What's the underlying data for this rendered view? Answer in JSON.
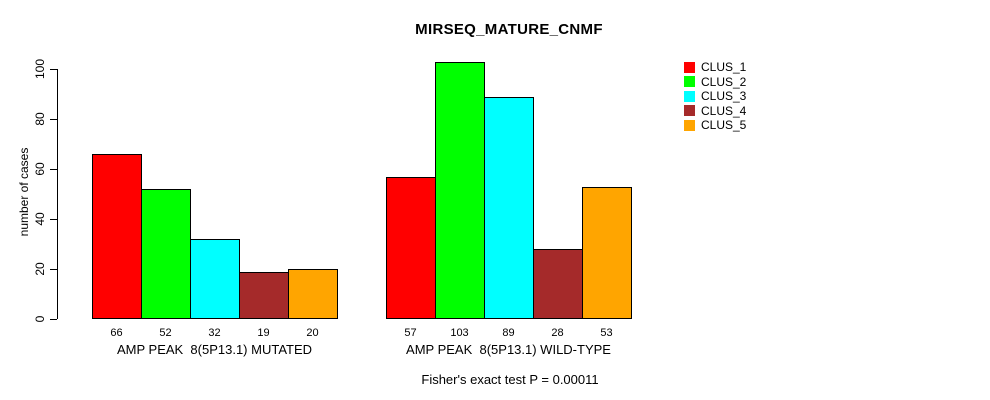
{
  "title": "MIRSEQ_MATURE_CNMF",
  "chart_data": {
    "type": "bar",
    "title": "MIRSEQ_MATURE_CNMF",
    "xlabel": "",
    "ylabel": "number of cases",
    "ylim": [
      0,
      103
    ],
    "y_ticks": [
      0,
      20,
      40,
      60,
      80,
      100
    ],
    "grid": false,
    "legend_position": "right",
    "categories": [
      "AMP PEAK  8(5P13.1) MUTATED",
      "AMP PEAK  8(5P13.1) WILD-TYPE"
    ],
    "series": [
      {
        "name": "CLUS_1",
        "color": "#FF0000",
        "values": [
          66,
          57
        ]
      },
      {
        "name": "CLUS_2",
        "color": "#00FF00",
        "values": [
          52,
          103
        ]
      },
      {
        "name": "CLUS_3",
        "color": "#00FFFF",
        "values": [
          32,
          89
        ]
      },
      {
        "name": "CLUS_4",
        "color": "#A52A2A",
        "values": [
          19,
          28
        ]
      },
      {
        "name": "CLUS_5",
        "color": "#FFA500",
        "values": [
          20,
          53
        ]
      }
    ],
    "bar_value_labels_shown": true,
    "annotation": "Fisher's exact test P = 0.00011"
  },
  "legend": {
    "items": [
      {
        "label": "CLUS_1",
        "color": "#FF0000"
      },
      {
        "label": "CLUS_2",
        "color": "#00FF00"
      },
      {
        "label": "CLUS_3",
        "color": "#00FFFF"
      },
      {
        "label": "CLUS_4",
        "color": "#A52A2A"
      },
      {
        "label": "CLUS_5",
        "color": "#FFA500"
      }
    ]
  }
}
